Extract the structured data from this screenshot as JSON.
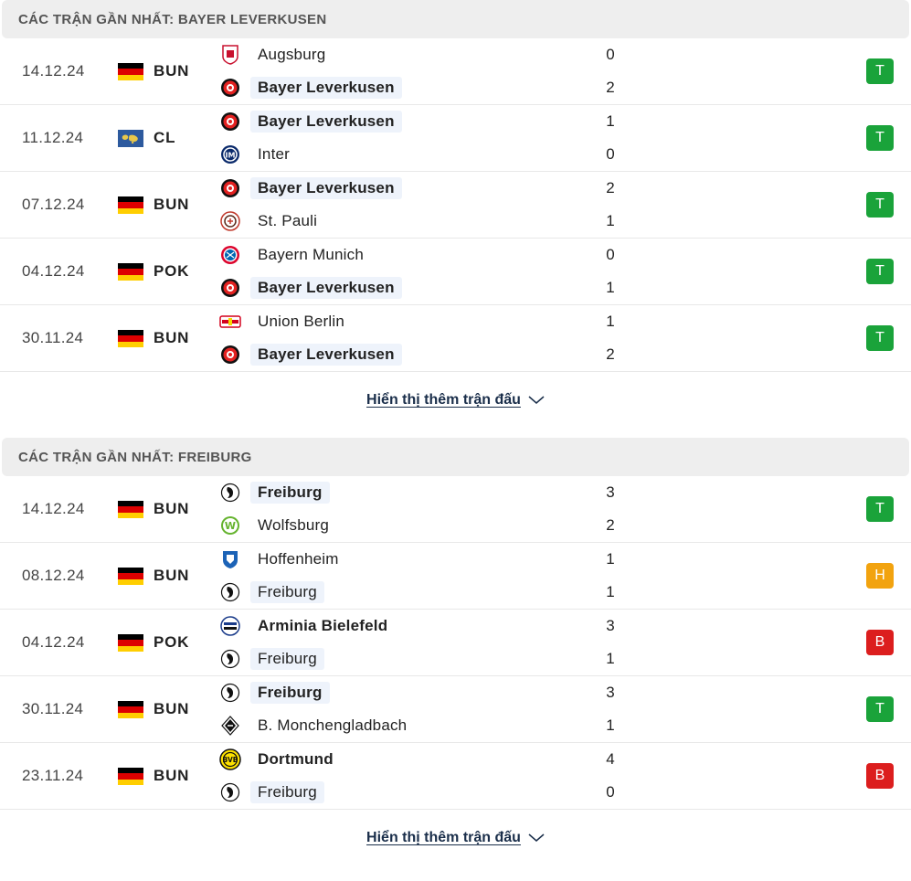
{
  "colors": {
    "win": "#1aa33a",
    "draw": "#f2a30f",
    "loss": "#dc1e1e",
    "highlight": "#eef3fb"
  },
  "sections": [
    {
      "title": "CÁC TRẬN GẦN NHẤT: BAYER LEVERKUSEN",
      "more_label": "Hiển thị thêm trận đấu",
      "matches": [
        {
          "date": "14.12.24",
          "flag": "germany",
          "comp": "BUN",
          "home": {
            "name": "Augsburg",
            "logo": "augsburg-icon",
            "hl": false,
            "bold": false,
            "score": "0"
          },
          "away": {
            "name": "Bayer Leverkusen",
            "logo": "leverkusen-icon",
            "hl": true,
            "bold": true,
            "score": "2"
          },
          "result": "T",
          "result_type": "win"
        },
        {
          "date": "11.12.24",
          "flag": "world",
          "comp": "CL",
          "home": {
            "name": "Bayer Leverkusen",
            "logo": "leverkusen-icon",
            "hl": true,
            "bold": true,
            "score": "1"
          },
          "away": {
            "name": "Inter",
            "logo": "inter-icon",
            "hl": false,
            "bold": false,
            "score": "0"
          },
          "result": "T",
          "result_type": "win"
        },
        {
          "date": "07.12.24",
          "flag": "germany",
          "comp": "BUN",
          "home": {
            "name": "Bayer Leverkusen",
            "logo": "leverkusen-icon",
            "hl": true,
            "bold": true,
            "score": "2"
          },
          "away": {
            "name": "St. Pauli",
            "logo": "stpauli-icon",
            "hl": false,
            "bold": false,
            "score": "1"
          },
          "result": "T",
          "result_type": "win"
        },
        {
          "date": "04.12.24",
          "flag": "germany",
          "comp": "POK",
          "home": {
            "name": "Bayern Munich",
            "logo": "bayern-icon",
            "hl": false,
            "bold": false,
            "score": "0"
          },
          "away": {
            "name": "Bayer Leverkusen",
            "logo": "leverkusen-icon",
            "hl": true,
            "bold": true,
            "score": "1"
          },
          "result": "T",
          "result_type": "win"
        },
        {
          "date": "30.11.24",
          "flag": "germany",
          "comp": "BUN",
          "home": {
            "name": "Union Berlin",
            "logo": "union-icon",
            "hl": false,
            "bold": false,
            "score": "1"
          },
          "away": {
            "name": "Bayer Leverkusen",
            "logo": "leverkusen-icon",
            "hl": true,
            "bold": true,
            "score": "2"
          },
          "result": "T",
          "result_type": "win"
        }
      ]
    },
    {
      "title": "CÁC TRẬN GẦN NHẤT: FREIBURG",
      "more_label": "Hiển thị thêm trận đấu",
      "matches": [
        {
          "date": "14.12.24",
          "flag": "germany",
          "comp": "BUN",
          "home": {
            "name": "Freiburg",
            "logo": "freiburg-icon",
            "hl": true,
            "bold": true,
            "score": "3"
          },
          "away": {
            "name": "Wolfsburg",
            "logo": "wolfsburg-icon",
            "hl": false,
            "bold": false,
            "score": "2"
          },
          "result": "T",
          "result_type": "win"
        },
        {
          "date": "08.12.24",
          "flag": "germany",
          "comp": "BUN",
          "home": {
            "name": "Hoffenheim",
            "logo": "hoffenheim-icon",
            "hl": false,
            "bold": false,
            "score": "1"
          },
          "away": {
            "name": "Freiburg",
            "logo": "freiburg-icon",
            "hl": true,
            "bold": false,
            "score": "1"
          },
          "result": "H",
          "result_type": "draw"
        },
        {
          "date": "04.12.24",
          "flag": "germany",
          "comp": "POK",
          "home": {
            "name": "Arminia Bielefeld",
            "logo": "bielefeld-icon",
            "hl": false,
            "bold": true,
            "score": "3"
          },
          "away": {
            "name": "Freiburg",
            "logo": "freiburg-icon",
            "hl": true,
            "bold": false,
            "score": "1"
          },
          "result": "B",
          "result_type": "loss"
        },
        {
          "date": "30.11.24",
          "flag": "germany",
          "comp": "BUN",
          "home": {
            "name": "Freiburg",
            "logo": "freiburg-icon",
            "hl": true,
            "bold": true,
            "score": "3"
          },
          "away": {
            "name": "B. Monchengladbach",
            "logo": "gladbach-icon",
            "hl": false,
            "bold": false,
            "score": "1"
          },
          "result": "T",
          "result_type": "win"
        },
        {
          "date": "23.11.24",
          "flag": "germany",
          "comp": "BUN",
          "home": {
            "name": "Dortmund",
            "logo": "dortmund-icon",
            "hl": false,
            "bold": true,
            "score": "4"
          },
          "away": {
            "name": "Freiburg",
            "logo": "freiburg-icon",
            "hl": true,
            "bold": false,
            "score": "0"
          },
          "result": "B",
          "result_type": "loss"
        }
      ]
    }
  ]
}
